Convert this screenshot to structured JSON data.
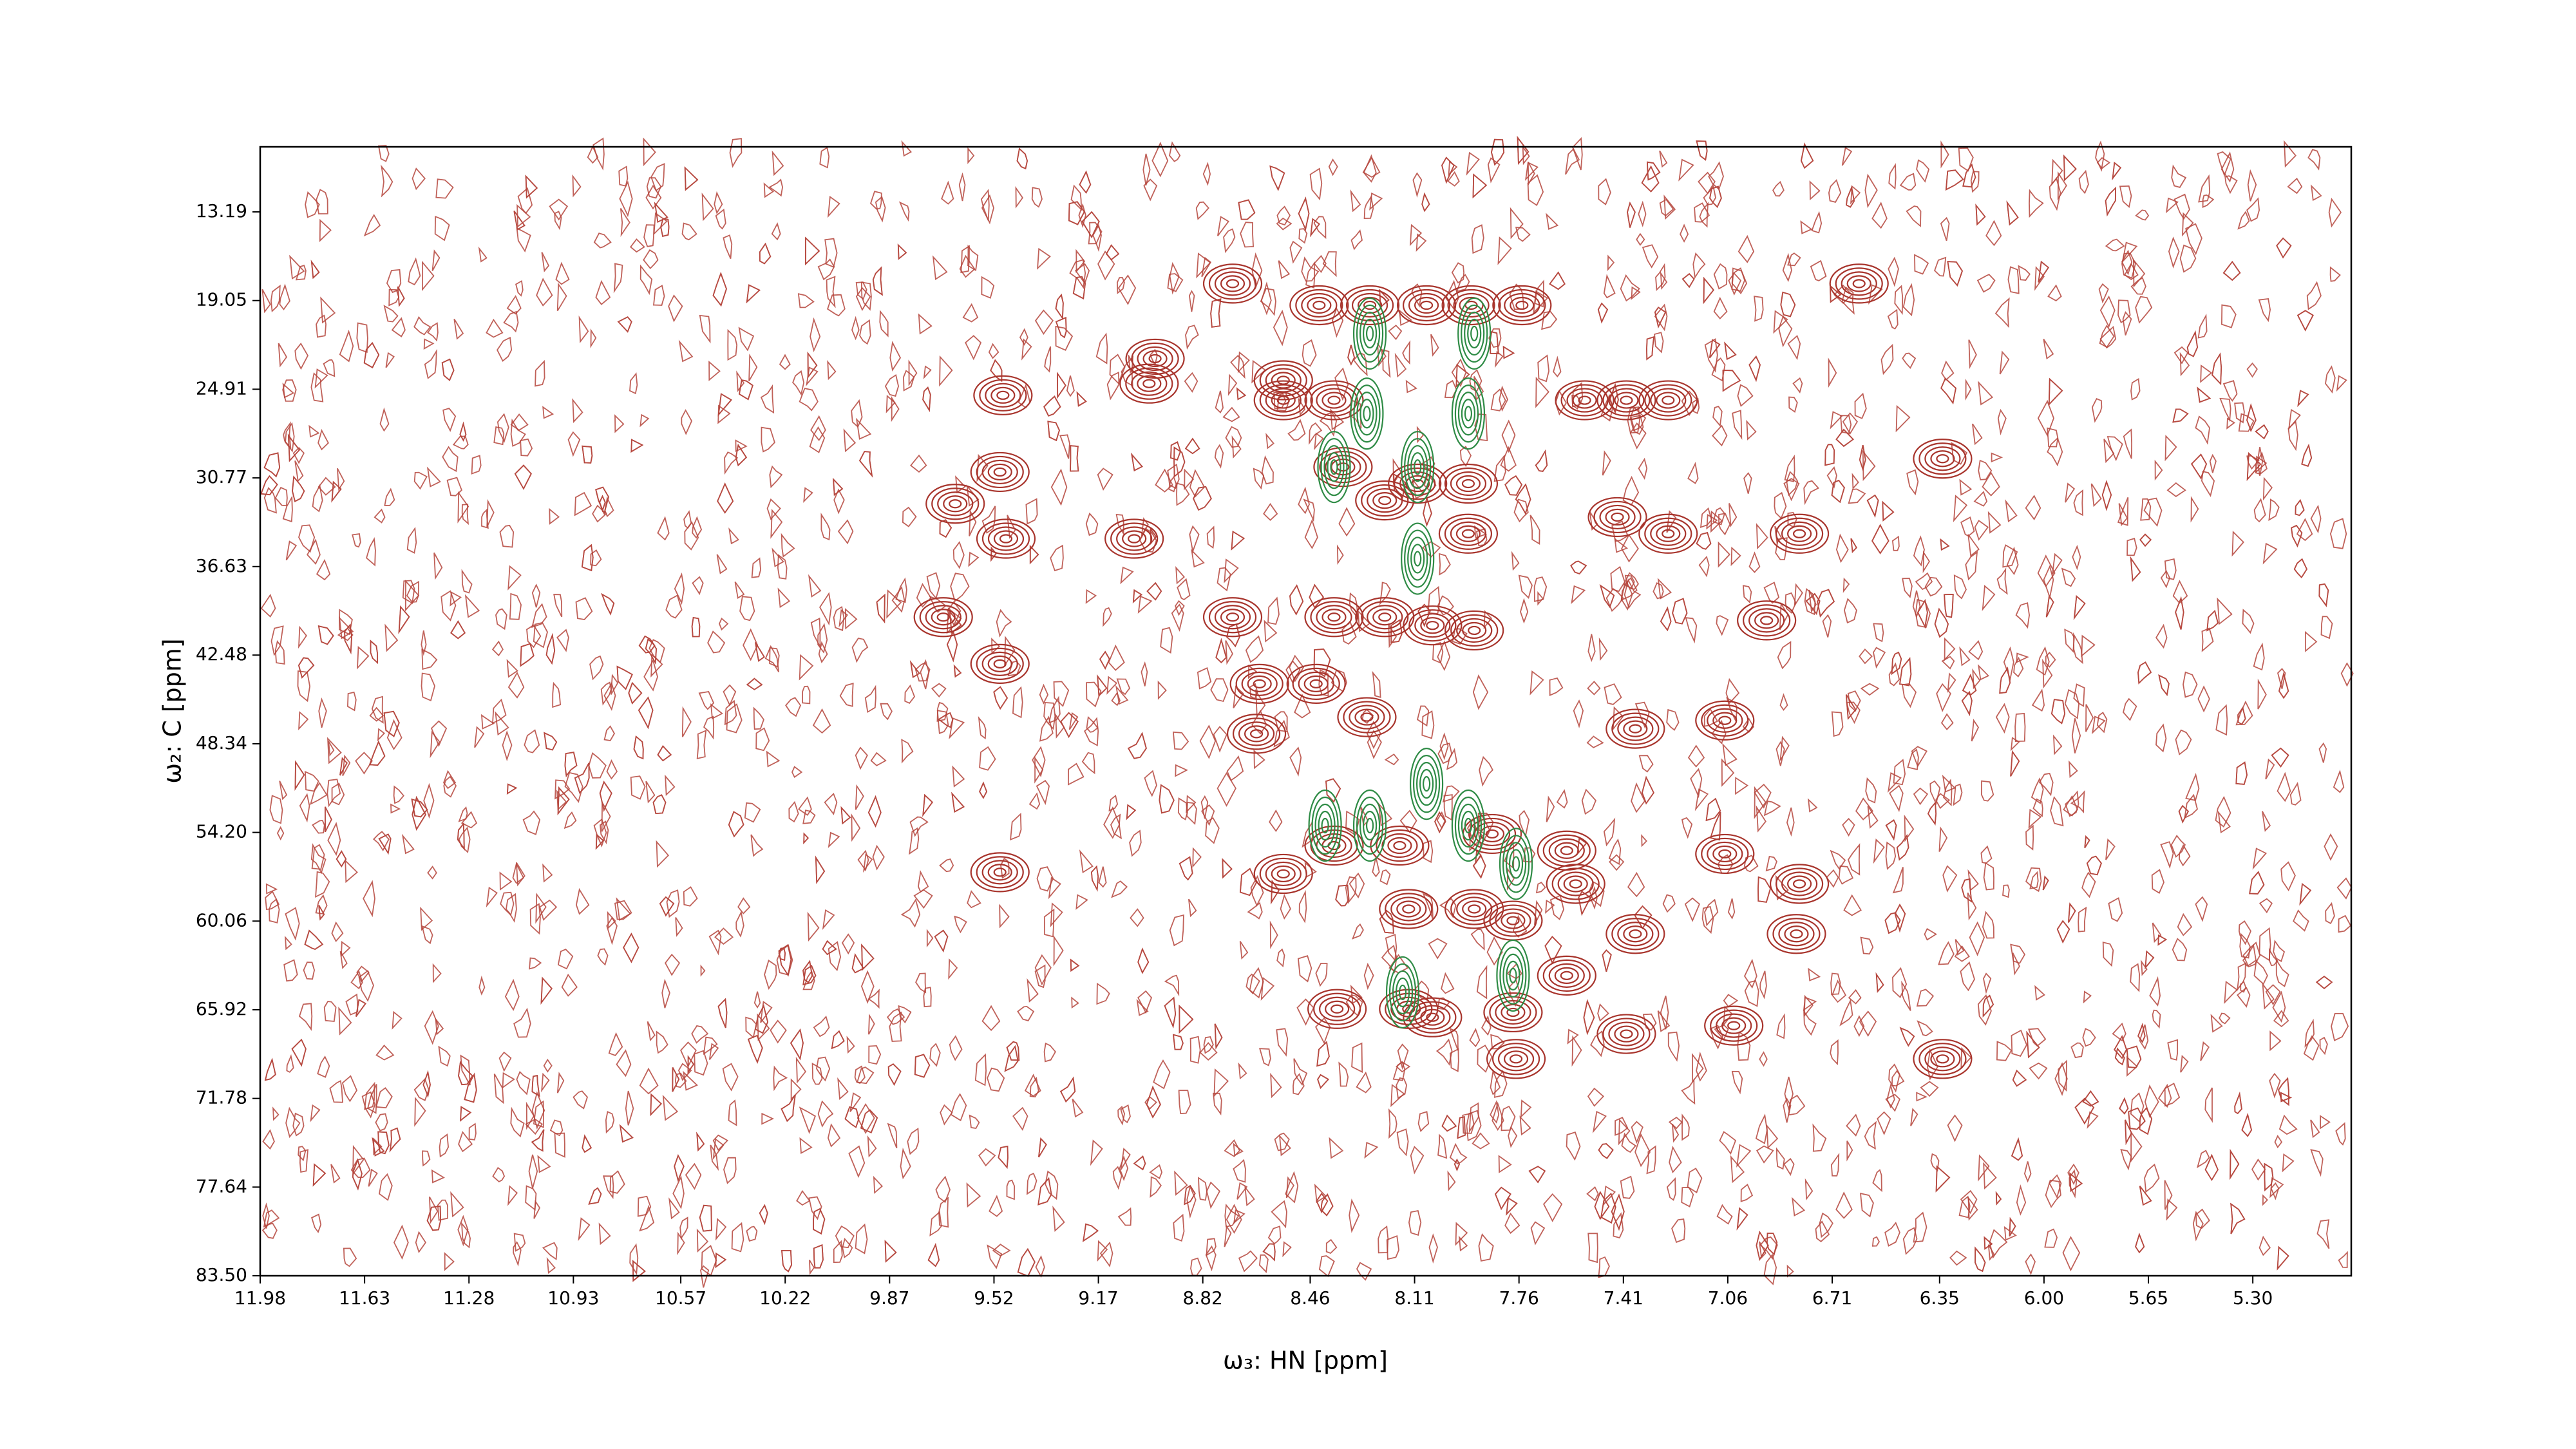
{
  "chart_data": {
    "type": "contour",
    "x_label": "ω₃: HN [ppm]",
    "y_label": "ω₂: C [ppm]",
    "xlim": [
      11.98,
      4.97
    ],
    "ylim": [
      83.5,
      8.89
    ],
    "xticks": [
      11.98,
      11.63,
      11.28,
      10.93,
      10.57,
      10.22,
      9.87,
      9.52,
      9.17,
      8.82,
      8.46,
      8.11,
      7.76,
      7.41,
      7.06,
      6.71,
      6.35,
      {
        "value": 6,
        "label": "6.00"
      },
      5.65,
      {
        "value": 5.3,
        "label": "5.30"
      }
    ],
    "yticks": [
      13.19,
      19.05,
      24.91,
      30.77,
      36.63,
      42.48,
      48.34,
      {
        "value": 54.2,
        "label": "54.20"
      },
      60.06,
      65.92,
      71.78,
      77.64,
      {
        "value": 83.5,
        "label": "83.50"
      }
    ],
    "series": [
      {
        "color": "#a8342c",
        "x": [
          8.72,
          8.43,
          8.26,
          8.07,
          7.92,
          7.75,
          8.98,
          8.55,
          8.55,
          9.0,
          9.49,
          8.38,
          7.54,
          7.4,
          7.26,
          8.35,
          8.1,
          7.93,
          8.21,
          9.5,
          9.65,
          9.05,
          9.48,
          7.93,
          7.43,
          7.26,
          6.82,
          6.34,
          8.72,
          8.38,
          8.21,
          8.05,
          7.91,
          6.93,
          9.69,
          9.5,
          8.63,
          8.44,
          8.27,
          7.37,
          7.07,
          8.64,
          8.55,
          8.38,
          8.16,
          7.85,
          7.6,
          7.07,
          6.82,
          6.83,
          8.13,
          7.91,
          7.78,
          7.57,
          7.37,
          7.6,
          8.37,
          8.13,
          7.78,
          7.4,
          7.04,
          6.34,
          6.62,
          9.5,
          7.77,
          8.05
        ],
        "y": [
          17.93,
          19.36,
          19.36,
          19.36,
          19.36,
          19.36,
          22.89,
          24.32,
          25.64,
          24.54,
          25.31,
          25.64,
          25.64,
          25.64,
          25.64,
          30.05,
          31.15,
          31.15,
          32.26,
          30.38,
          32.48,
          34.79,
          34.79,
          34.46,
          33.36,
          34.46,
          34.46,
          29.5,
          39.97,
          39.97,
          39.97,
          40.52,
          40.85,
          40.19,
          39.97,
          43.06,
          44.38,
          44.38,
          46.58,
          47.35,
          46.8,
          47.68,
          56.94,
          55.07,
          55.07,
          54.3,
          55.4,
          55.62,
          57.6,
          60.91,
          59.26,
          59.26,
          60.03,
          57.6,
          60.91,
          63.66,
          65.87,
          65.87,
          66.09,
          67.52,
          66.97,
          69.17,
          17.93,
          56.83,
          69.17,
          66.42
        ]
      },
      {
        "color": "#2e8b45",
        "x": [
          8.26,
          7.91,
          8.27,
          7.93,
          8.1,
          8.1,
          8.38,
          8.41,
          8.26,
          7.93,
          7.77,
          7.78,
          8.15,
          8.07
        ],
        "y": [
          21.23,
          21.23,
          26.52,
          26.52,
          30.05,
          36.11,
          30.05,
          53.75,
          53.75,
          53.75,
          56.28,
          63.66,
          64.77,
          50.99
        ]
      }
    ]
  }
}
